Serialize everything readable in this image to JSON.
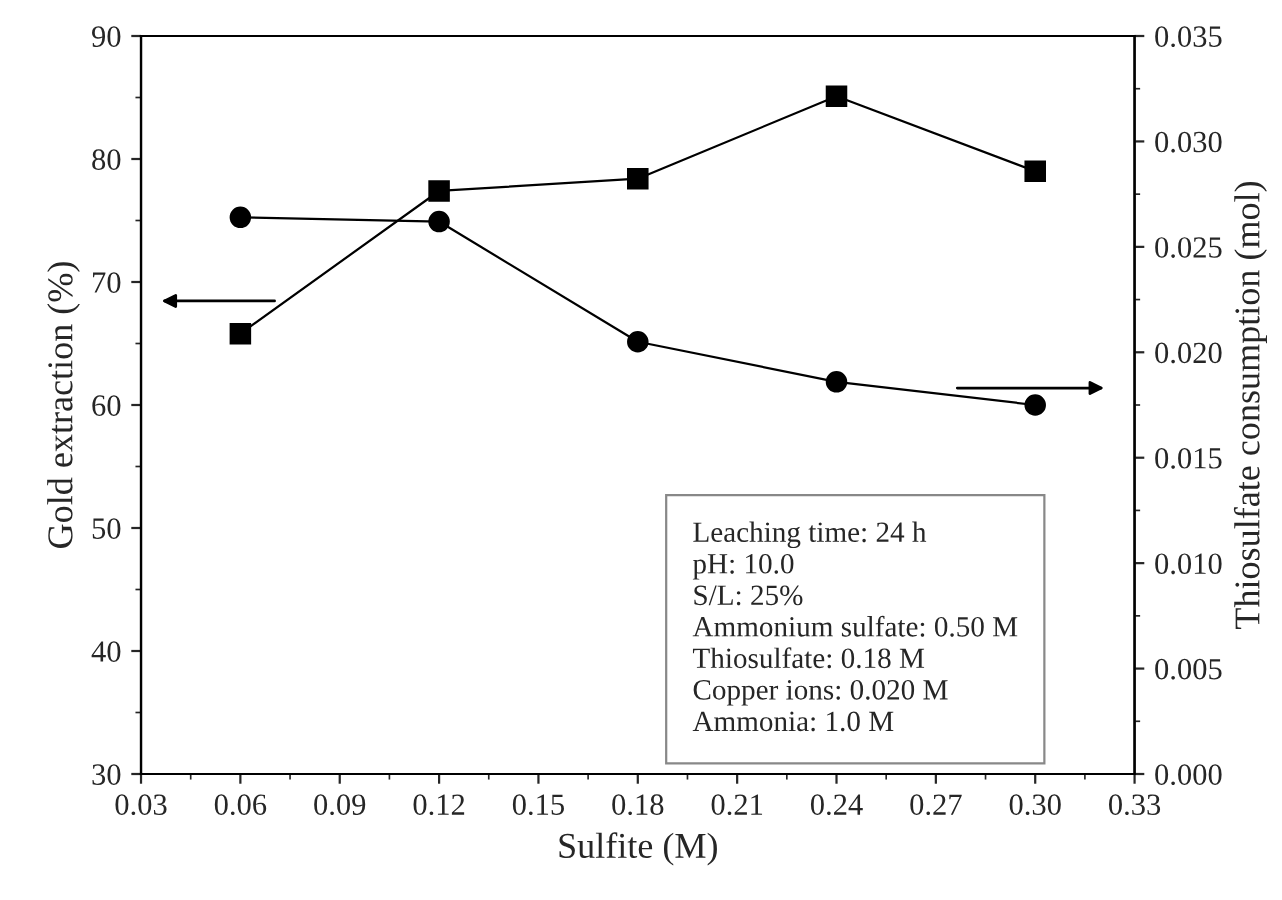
{
  "chart_data": {
    "type": "line",
    "xlabel": "Sulfite (M)",
    "ylabel": "Gold extraction (%)",
    "y2label": "Thiosulfate consumption (mol)",
    "x": [
      0.06,
      0.12,
      0.18,
      0.24,
      0.3
    ],
    "series": [
      {
        "color": "#000000",
        "marker": "square",
        "values": [
          65.8,
          77.4,
          78.4,
          85.1,
          79.0
        ]
      },
      {
        "color": "#000000",
        "marker": "circle",
        "axis": "y2",
        "values": [
          0.0264,
          0.0262,
          0.0205,
          0.0186,
          0.0175
        ]
      }
    ],
    "xlim": [
      0.03,
      0.33
    ],
    "xticks": [
      {
        "value": 0.03,
        "label": "0.03"
      },
      {
        "value": 0.06,
        "label": "0.06"
      },
      {
        "value": 0.09,
        "label": "0.09"
      },
      {
        "value": 0.12,
        "label": "0.12"
      },
      {
        "value": 0.15,
        "label": "0.15"
      },
      {
        "value": 0.18,
        "label": "0.18"
      },
      {
        "value": 0.21,
        "label": "0.21"
      },
      {
        "value": 0.24,
        "label": "0.24"
      },
      {
        "value": 0.27,
        "label": "0.27"
      },
      {
        "value": 0.3,
        "label": "0.30"
      },
      {
        "value": 0.33,
        "label": "0.33"
      }
    ],
    "ylim": [
      30,
      90
    ],
    "yticks": [
      30,
      40,
      50,
      60,
      70,
      80,
      90
    ],
    "y2lim": [
      0,
      0.035
    ],
    "y2ticks": [
      {
        "value": 0,
        "label": "0.000"
      },
      {
        "value": 0.005,
        "label": "0.005"
      },
      {
        "value": 0.01,
        "label": "0.010"
      },
      {
        "value": 0.015,
        "label": "0.015"
      },
      {
        "value": 0.02,
        "label": "0.020"
      },
      {
        "value": 0.025,
        "label": "0.025"
      },
      {
        "value": 0.03,
        "label": "0.030"
      },
      {
        "value": 0.035,
        "label": "0.035"
      }
    ],
    "grid": false,
    "legend": false,
    "line_style": "solid",
    "annotations": [
      "Leaching time: 24 h\npH: 10.0\nS/L: 25%\nAmmonium sulfate: 0.50 M\nThiosulfate: 0.18 M\nCopper ions: 0.020 M\nAmmonia: 1.0 M"
    ]
  }
}
